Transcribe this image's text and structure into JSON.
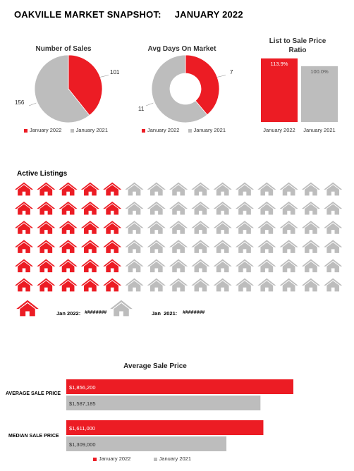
{
  "title": "OAKVILLE MARKET SNAPSHOT:     JANUARY 2022",
  "colors": {
    "current": "#ec1c24",
    "previous": "#bdbdbd"
  },
  "legend": {
    "current": "January 2022",
    "previous": "January 2021"
  },
  "chart_data": [
    {
      "type": "pie",
      "title": "Number of Sales",
      "labels": [
        "January 2022",
        "January 2021"
      ],
      "values": [
        101,
        156
      ],
      "value_labels": [
        "101",
        "156"
      ]
    },
    {
      "type": "pie",
      "subtype": "doughnut",
      "title": "Avg Days On Market",
      "labels": [
        "January 2022",
        "January 2021"
      ],
      "values": [
        7,
        11
      ],
      "value_labels": [
        "7",
        "11"
      ]
    },
    {
      "type": "bar",
      "title": "List to Sale Price Ratio",
      "categories": [
        "January 2022",
        "January 2021"
      ],
      "values": [
        113.9,
        100.0
      ],
      "value_labels": [
        "113.9%",
        "100.0%"
      ],
      "ylim": [
        0,
        120
      ]
    },
    {
      "type": "icon-grid",
      "title": "Active Listings",
      "icon": "house-icon",
      "rows": 6,
      "columns": 15,
      "highlighted_per_row": 5,
      "key": {
        "current": "Jan 2022:",
        "previous": "Jan  2021:"
      },
      "key_values": {
        "current": "########",
        "previous": "########"
      }
    },
    {
      "type": "bar",
      "orientation": "horizontal",
      "title": "Average Sale Price",
      "categories": [
        "AVERAGE SALE PRICE",
        "MEDIAN SALE PRICE"
      ],
      "series": [
        {
          "name": "January 2022",
          "values": [
            1856200,
            1611000
          ],
          "value_labels": [
            "$1,856,200",
            "$1,611,000"
          ]
        },
        {
          "name": "January 2021",
          "values": [
            1587185,
            1309000
          ],
          "value_labels": [
            "$1,587,185",
            "$1,309,000"
          ]
        }
      ]
    }
  ]
}
